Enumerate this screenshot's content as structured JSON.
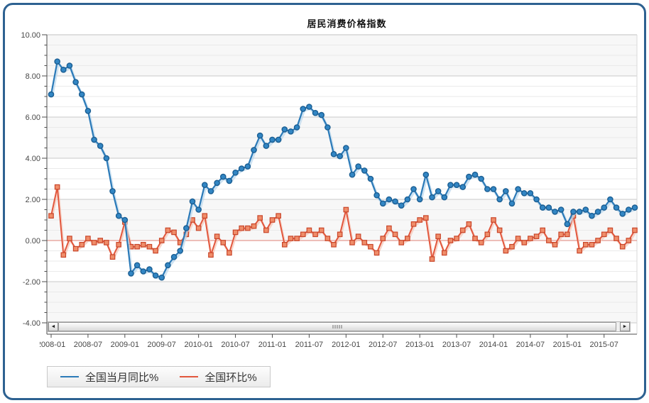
{
  "frame": {
    "border_color": "#2d6191"
  },
  "icons": {
    "scroll_left_icon": "◄",
    "scroll_right_icon": "►"
  },
  "chart_data": {
    "type": "line",
    "title": "居民消费价格指数",
    "xlabel": "",
    "ylabel": "",
    "ylim": [
      -4,
      10
    ],
    "y_major_step": 2,
    "y_minor_step": 0.5,
    "grid": true,
    "legend_position": "bottom-left",
    "zero_line_color": "#df8277",
    "y_ticks": [
      "10.00",
      "8.00",
      "6.00",
      "4.00",
      "2.00",
      "0.00",
      "-2.00",
      "-4.00"
    ],
    "y_tick_values": [
      10,
      8,
      6,
      4,
      2,
      0,
      -2,
      -4
    ],
    "x_tick_labels": [
      "2008-01",
      "2008-07",
      "2009-01",
      "2009-07",
      "2010-01",
      "2010-07",
      "2011-01",
      "2011-07",
      "2012-01",
      "2012-07",
      "2013-01",
      "2013-07",
      "2014-01",
      "2014-07",
      "2015-01",
      "2015-07"
    ],
    "x_categories": [
      "2008-01",
      "2008-02",
      "2008-03",
      "2008-04",
      "2008-05",
      "2008-06",
      "2008-07",
      "2008-08",
      "2008-09",
      "2008-10",
      "2008-11",
      "2008-12",
      "2009-01",
      "2009-02",
      "2009-03",
      "2009-04",
      "2009-05",
      "2009-06",
      "2009-07",
      "2009-08",
      "2009-09",
      "2009-10",
      "2009-11",
      "2009-12",
      "2010-01",
      "2010-02",
      "2010-03",
      "2010-04",
      "2010-05",
      "2010-06",
      "2010-07",
      "2010-08",
      "2010-09",
      "2010-10",
      "2010-11",
      "2010-12",
      "2011-01",
      "2011-02",
      "2011-03",
      "2011-04",
      "2011-05",
      "2011-06",
      "2011-07",
      "2011-08",
      "2011-09",
      "2011-10",
      "2011-11",
      "2011-12",
      "2012-01",
      "2012-02",
      "2012-03",
      "2012-04",
      "2012-05",
      "2012-06",
      "2012-07",
      "2012-08",
      "2012-09",
      "2012-10",
      "2012-11",
      "2012-12",
      "2013-01",
      "2013-02",
      "2013-03",
      "2013-04",
      "2013-05",
      "2013-06",
      "2013-07",
      "2013-08",
      "2013-09",
      "2013-10",
      "2013-11",
      "2013-12",
      "2014-01",
      "2014-02",
      "2014-03",
      "2014-04",
      "2014-05",
      "2014-06",
      "2014-07",
      "2014-08",
      "2014-09",
      "2014-10",
      "2014-11",
      "2014-12",
      "2015-01",
      "2015-02",
      "2015-03",
      "2015-04",
      "2015-05",
      "2015-06",
      "2015-07",
      "2015-08",
      "2015-09",
      "2015-10",
      "2015-11",
      "2015-12"
    ],
    "series": [
      {
        "name": "全国环比%",
        "color": "#e2573d",
        "glow_color": "#f6c8b9",
        "marker": "square",
        "marker_fill": "#ef8d6a",
        "marker_stroke": "#c94529",
        "values": [
          1.2,
          2.6,
          -0.7,
          0.1,
          -0.4,
          -0.2,
          0.1,
          -0.1,
          0.0,
          -0.1,
          -0.8,
          -0.2,
          0.9,
          -0.3,
          -0.3,
          -0.2,
          -0.3,
          -0.5,
          0.0,
          0.5,
          0.4,
          -0.1,
          0.3,
          1.0,
          0.6,
          1.2,
          -0.7,
          0.2,
          -0.1,
          -0.6,
          0.4,
          0.6,
          0.6,
          0.7,
          1.1,
          0.5,
          1.0,
          1.2,
          -0.2,
          0.1,
          0.1,
          0.3,
          0.5,
          0.3,
          0.5,
          0.1,
          -0.2,
          0.3,
          1.5,
          -0.1,
          0.2,
          -0.1,
          -0.3,
          -0.6,
          0.1,
          0.6,
          0.3,
          -0.1,
          0.1,
          0.8,
          1.0,
          1.1,
          -0.9,
          0.2,
          -0.6,
          0.0,
          0.1,
          0.5,
          0.8,
          0.1,
          -0.1,
          0.3,
          1.0,
          0.5,
          -0.5,
          -0.3,
          0.1,
          -0.1,
          0.1,
          0.2,
          0.5,
          0.0,
          -0.2,
          0.3,
          0.3,
          1.2,
          -0.5,
          -0.2,
          -0.2,
          0.0,
          0.3,
          0.5,
          0.1,
          -0.3,
          0.0,
          0.5
        ]
      },
      {
        "name": "全国当月同比%",
        "color": "#2b7ab8",
        "glow_color": "#bfd9ee",
        "marker": "circle",
        "marker_fill": "#3286c4",
        "marker_stroke": "#1b5e92",
        "values": [
          7.1,
          8.7,
          8.3,
          8.5,
          7.7,
          7.1,
          6.3,
          4.9,
          4.6,
          4.0,
          2.4,
          1.2,
          1.0,
          -1.6,
          -1.2,
          -1.5,
          -1.4,
          -1.7,
          -1.8,
          -1.2,
          -0.8,
          -0.5,
          0.6,
          1.9,
          1.5,
          2.7,
          2.4,
          2.8,
          3.1,
          2.9,
          3.3,
          3.5,
          3.6,
          4.4,
          5.1,
          4.6,
          4.9,
          4.9,
          5.4,
          5.3,
          5.5,
          6.4,
          6.5,
          6.2,
          6.1,
          5.5,
          4.2,
          4.1,
          4.5,
          3.2,
          3.6,
          3.4,
          3.0,
          2.2,
          1.8,
          2.0,
          1.9,
          1.7,
          2.0,
          2.5,
          2.0,
          3.2,
          2.1,
          2.4,
          2.1,
          2.7,
          2.7,
          2.6,
          3.1,
          3.2,
          3.0,
          2.5,
          2.5,
          2.0,
          2.4,
          1.8,
          2.5,
          2.3,
          2.3,
          2.0,
          1.6,
          1.6,
          1.4,
          1.5,
          0.8,
          1.4,
          1.4,
          1.5,
          1.2,
          1.4,
          1.6,
          2.0,
          1.6,
          1.3,
          1.5,
          1.6
        ]
      }
    ],
    "legend_order": [
      "全国当月同比%",
      "全国环比%"
    ]
  }
}
